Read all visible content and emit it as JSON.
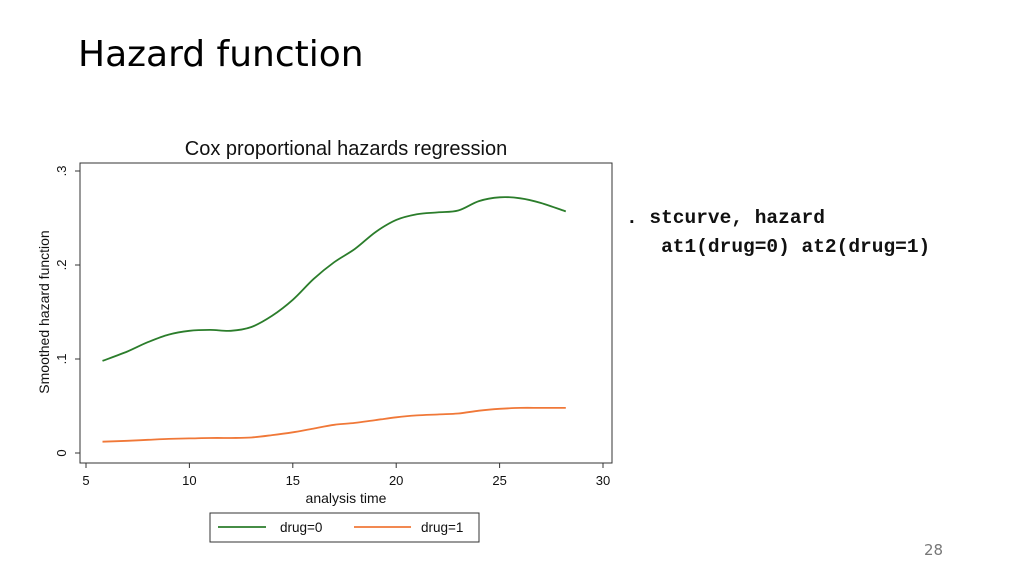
{
  "slide": {
    "title": "Hazard function",
    "page_number": "28"
  },
  "code": {
    "line1": ". stcurve, hazard",
    "line2": "   at1(drug=0) at2(drug=1)"
  },
  "chart_data": {
    "type": "line",
    "title": "Cox proportional hazards regression",
    "xlabel": "analysis time",
    "ylabel": "Smoothed hazard function",
    "xlim": [
      5,
      30
    ],
    "ylim": [
      0,
      0.3
    ],
    "xticks": [
      5,
      10,
      15,
      20,
      25,
      30
    ],
    "xtick_labels": [
      "5",
      "10",
      "15",
      "20",
      "25",
      "30"
    ],
    "yticks": [
      0,
      0.1,
      0.2,
      0.3
    ],
    "ytick_labels": [
      "0",
      ".1",
      ".2",
      ".3"
    ],
    "grid": false,
    "legend_position": "bottom",
    "series": [
      {
        "name": "drug=0",
        "color": "#2b7d2b",
        "x": [
          5.8,
          7,
          8,
          9,
          10,
          11,
          12,
          13,
          14,
          15,
          16,
          17,
          18,
          19,
          20,
          21,
          22,
          23,
          24,
          25,
          26,
          27,
          28.2
        ],
        "y": [
          0.098,
          0.108,
          0.118,
          0.126,
          0.13,
          0.131,
          0.13,
          0.134,
          0.146,
          0.163,
          0.185,
          0.203,
          0.217,
          0.235,
          0.248,
          0.254,
          0.256,
          0.258,
          0.268,
          0.272,
          0.271,
          0.266,
          0.257
        ]
      },
      {
        "name": "drug=1",
        "color": "#f07838",
        "x": [
          5.8,
          7,
          8,
          9,
          10,
          11,
          12,
          13,
          14,
          15,
          16,
          17,
          18,
          19,
          20,
          21,
          22,
          23,
          24,
          25,
          26,
          27,
          28.2
        ],
        "y": [
          0.012,
          0.013,
          0.014,
          0.015,
          0.0155,
          0.016,
          0.016,
          0.0165,
          0.019,
          0.022,
          0.026,
          0.03,
          0.032,
          0.035,
          0.038,
          0.04,
          0.041,
          0.042,
          0.045,
          0.047,
          0.048,
          0.048,
          0.048
        ]
      }
    ]
  }
}
